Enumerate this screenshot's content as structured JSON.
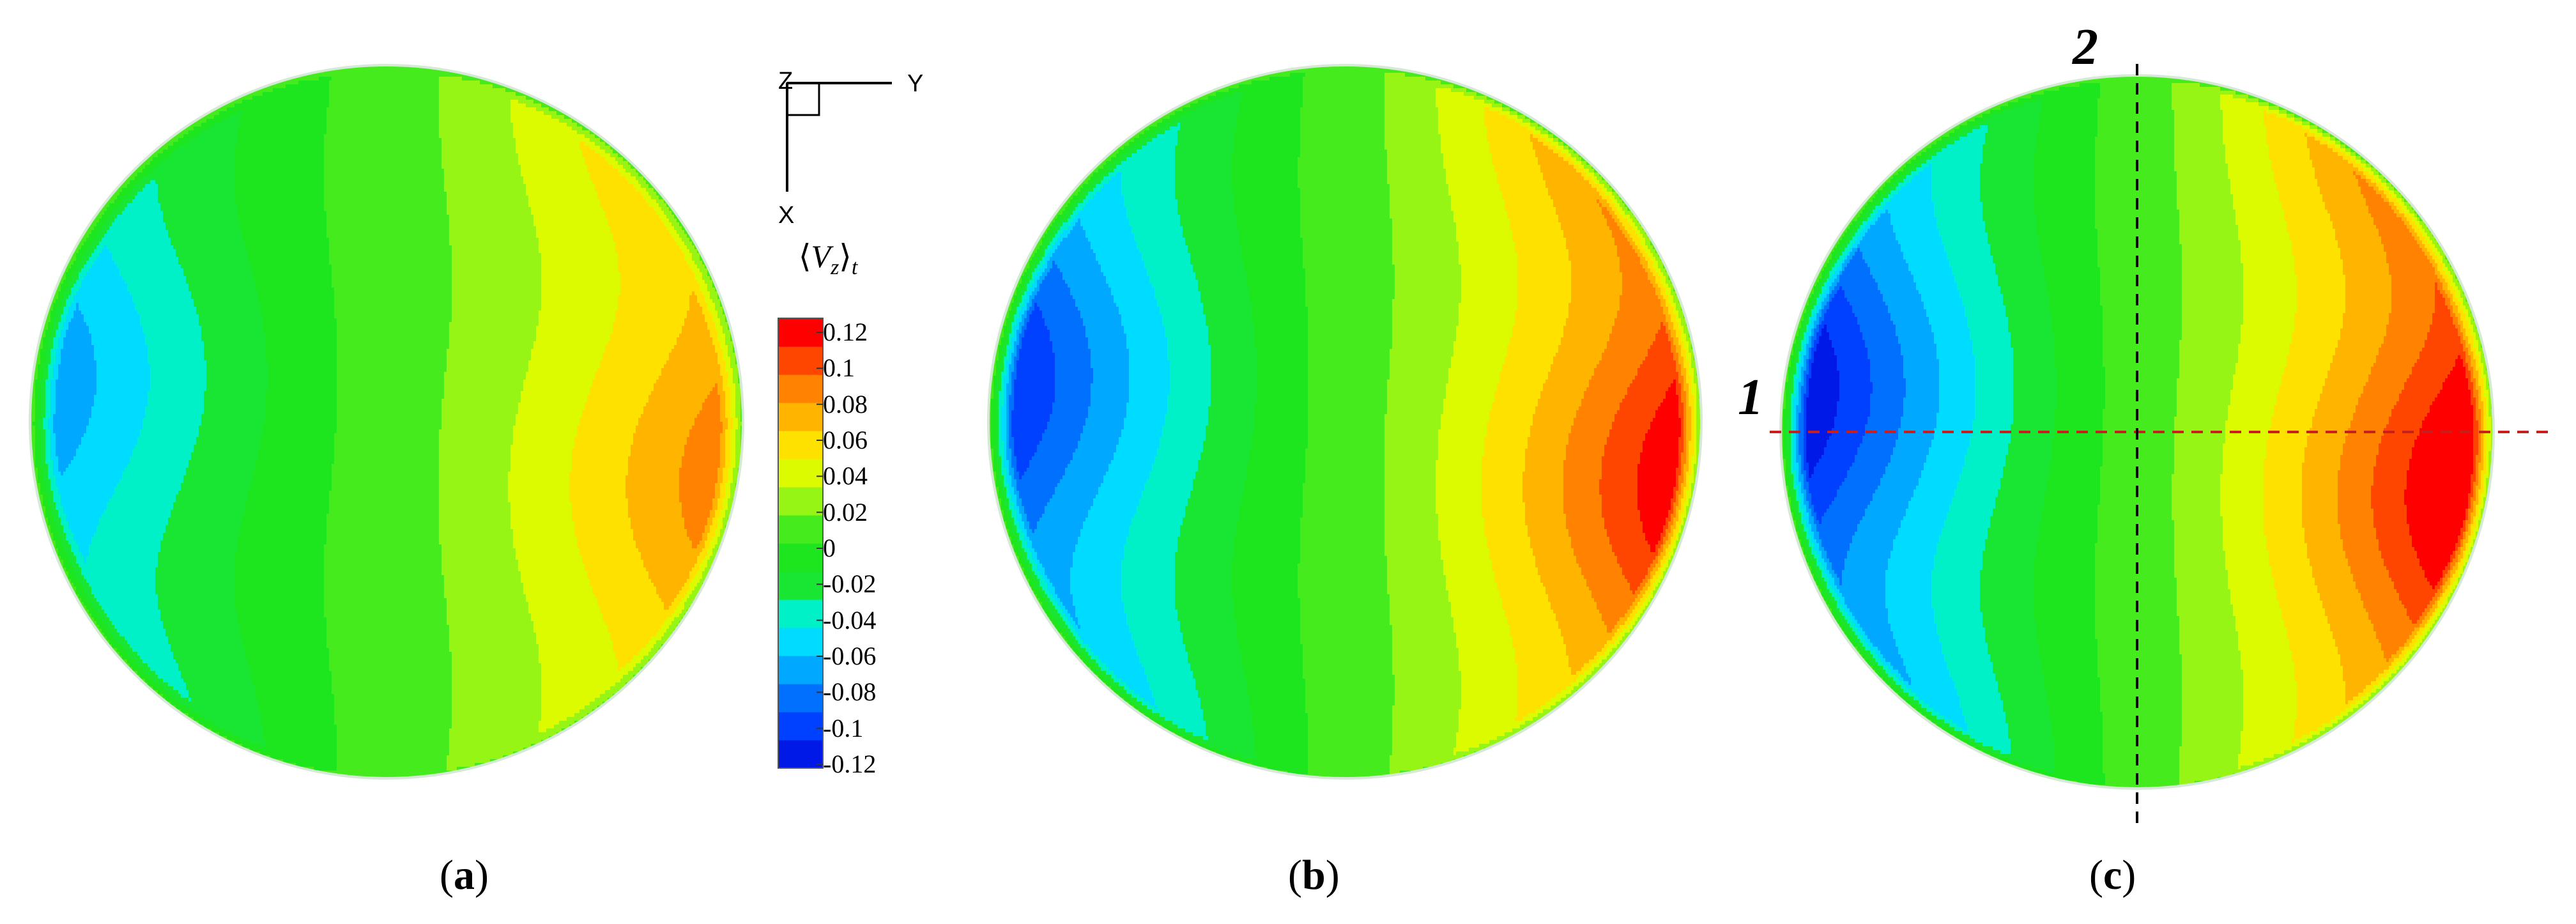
{
  "figure": {
    "panels": [
      {
        "label": "a",
        "intensity": 0.62
      },
      {
        "label": "b",
        "intensity": 0.9
      },
      {
        "label": "c",
        "intensity": 1.0
      }
    ],
    "legend": {
      "title_base": "V",
      "title_sub_z": "z",
      "title_sub_t": "t",
      "ticks": [
        "0.12",
        "0.1",
        "0.08",
        "0.06",
        "0.04",
        "0.02",
        "0",
        "-0.02",
        "-0.04",
        "-0.06",
        "-0.08",
        "-0.1",
        "-0.12"
      ],
      "band_colors": [
        "#0019e6",
        "#0040ff",
        "#0070ff",
        "#00a8ff",
        "#00dcff",
        "#00f0c8",
        "#19e632",
        "#1ee61e",
        "#46eb1e",
        "#96f514",
        "#dcfa00",
        "#ffe100",
        "#ffb400",
        "#ff8200",
        "#ff4600",
        "#ff0000"
      ]
    },
    "axes_indicator": {
      "z": "Z",
      "y": "Y",
      "x": "X"
    },
    "section_lines": {
      "line1_label": "1",
      "line2_label": "2",
      "line1_color": "#c81e1e",
      "line2_color": "#000000"
    }
  }
}
